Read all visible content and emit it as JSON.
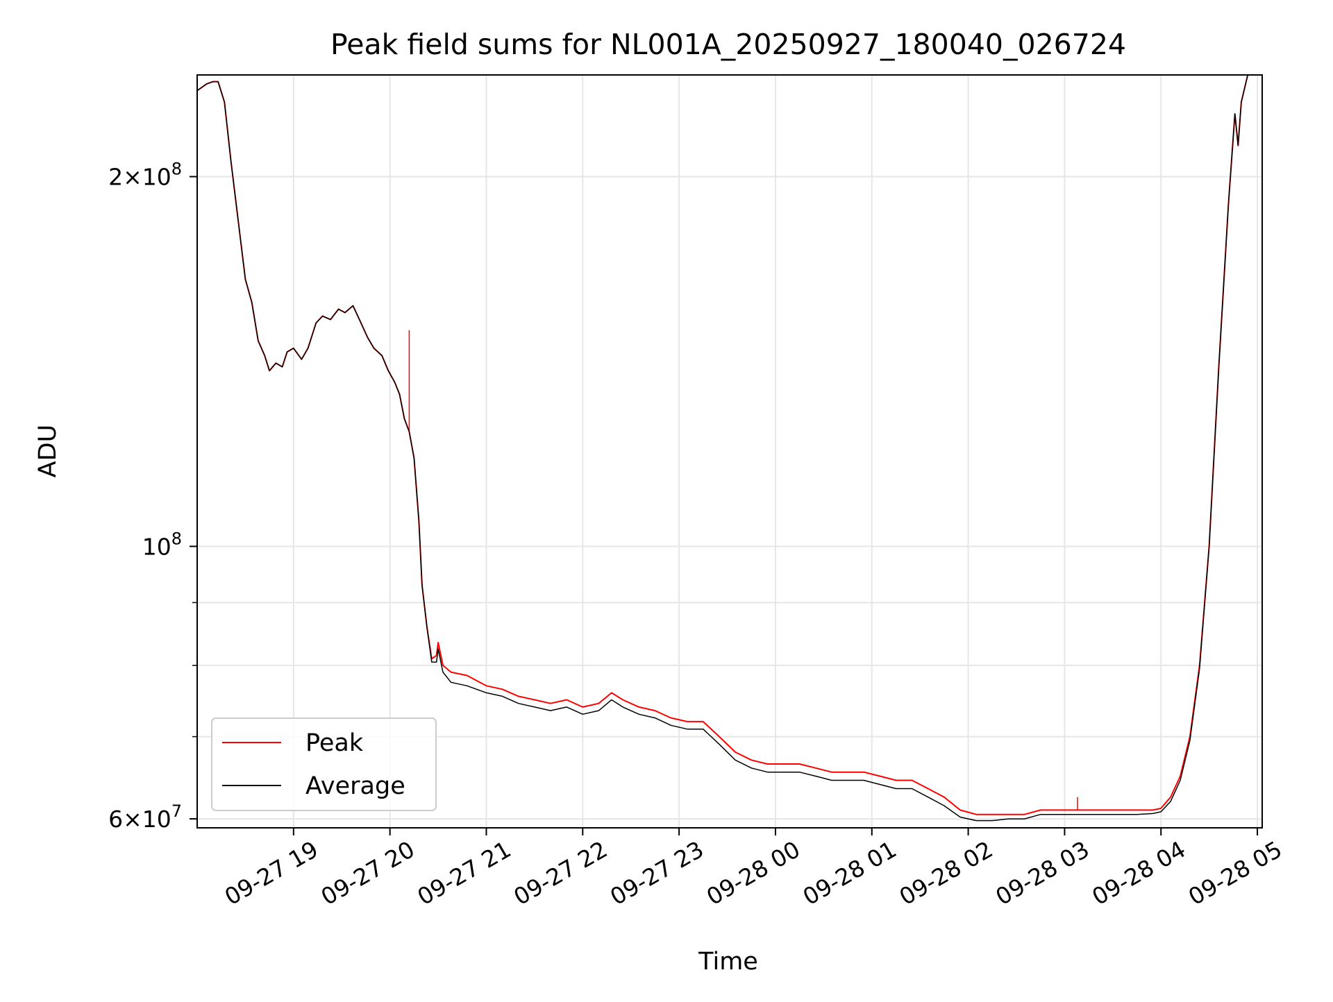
{
  "chart_data": {
    "type": "line",
    "title": "Peak field sums for NL001A_20250927_180040_026724",
    "xlabel": "Time",
    "ylabel": "ADU",
    "yscale": "log",
    "grid": true,
    "legend_position": "lower left",
    "xlim": [
      "2025-09-27 18:00",
      "2025-09-28 05:03"
    ],
    "ylim": [
      59000000,
      242000000
    ],
    "x_ticks": [
      {
        "t": "2025-09-27 19:00",
        "label": "09-27 19"
      },
      {
        "t": "2025-09-27 20:00",
        "label": "09-27 20"
      },
      {
        "t": "2025-09-27 21:00",
        "label": "09-27 21"
      },
      {
        "t": "2025-09-27 22:00",
        "label": "09-27 22"
      },
      {
        "t": "2025-09-27 23:00",
        "label": "09-27 23"
      },
      {
        "t": "2025-09-28 00:00",
        "label": "09-28 00"
      },
      {
        "t": "2025-09-28 01:00",
        "label": "09-28 01"
      },
      {
        "t": "2025-09-28 02:00",
        "label": "09-28 02"
      },
      {
        "t": "2025-09-28 03:00",
        "label": "09-28 03"
      },
      {
        "t": "2025-09-28 04:00",
        "label": "09-28 04"
      },
      {
        "t": "2025-09-28 05:00",
        "label": "09-28 05"
      }
    ],
    "y_major_ticks": [
      {
        "v": 200000000,
        "mant": "2",
        "exp": "8"
      },
      {
        "v": 100000000,
        "mant": "",
        "exp": "8"
      },
      {
        "v": 60000000,
        "mant": "6",
        "exp": "7"
      }
    ],
    "y_minor_grid": [
      70000000,
      80000000,
      90000000
    ],
    "series": [
      {
        "name": "Peak",
        "color": "#ff0000",
        "points": [
          [
            "2025-09-27 18:00",
            235000000
          ],
          [
            "2025-09-27 18:06",
            238000000
          ],
          [
            "2025-09-27 18:10",
            239000000
          ],
          [
            "2025-09-27 18:13",
            239000000
          ],
          [
            "2025-09-27 18:17",
            230000000
          ],
          [
            "2025-09-27 18:21",
            206000000
          ],
          [
            "2025-09-27 18:26",
            182000000
          ],
          [
            "2025-09-27 18:30",
            165000000
          ],
          [
            "2025-09-27 18:34",
            158000000
          ],
          [
            "2025-09-27 18:38",
            147000000
          ],
          [
            "2025-09-27 18:42",
            143000000
          ],
          [
            "2025-09-27 18:45",
            139000000
          ],
          [
            "2025-09-27 18:49",
            141000000
          ],
          [
            "2025-09-27 18:53",
            140000000
          ],
          [
            "2025-09-27 18:56",
            144000000
          ],
          [
            "2025-09-27 19:00",
            145000000
          ],
          [
            "2025-09-27 19:05",
            142000000
          ],
          [
            "2025-09-27 19:09",
            145000000
          ],
          [
            "2025-09-27 19:14",
            152000000
          ],
          [
            "2025-09-27 19:18",
            154000000
          ],
          [
            "2025-09-27 19:23",
            153000000
          ],
          [
            "2025-09-27 19:28",
            156000000
          ],
          [
            "2025-09-27 19:32",
            155000000
          ],
          [
            "2025-09-27 19:37",
            157000000
          ],
          [
            "2025-09-27 19:41",
            153000000
          ],
          [
            "2025-09-27 19:46",
            148000000
          ],
          [
            "2025-09-27 19:50",
            145000000
          ],
          [
            "2025-09-27 19:55",
            143000000
          ],
          [
            "2025-09-27 19:59",
            139000000
          ],
          [
            "2025-09-27 20:03",
            136000000
          ],
          [
            "2025-09-27 20:06",
            133000000
          ],
          [
            "2025-09-27 20:09",
            127000000
          ],
          [
            "2025-09-27 20:12",
            124000000
          ],
          [
            "2025-09-27 20:15",
            118000000
          ],
          [
            "2025-09-27 20:18",
            105000000
          ],
          [
            "2025-09-27 20:20",
            93000000
          ],
          [
            "2025-09-27 20:23",
            86000000
          ],
          [
            "2025-09-27 20:26",
            81000000
          ],
          [
            "2025-09-27 20:29",
            81500000
          ],
          [
            "2025-09-27 20:30",
            83500000
          ],
          [
            "2025-09-27 20:33",
            80000000
          ],
          [
            "2025-09-27 20:38",
            79000000
          ],
          [
            "2025-09-27 20:48",
            78500000
          ],
          [
            "2025-09-27 21:00",
            77000000
          ],
          [
            "2025-09-27 21:10",
            76500000
          ],
          [
            "2025-09-27 21:20",
            75500000
          ],
          [
            "2025-09-27 21:30",
            75000000
          ],
          [
            "2025-09-27 21:40",
            74500000
          ],
          [
            "2025-09-27 21:50",
            75000000
          ],
          [
            "2025-09-27 22:00",
            74000000
          ],
          [
            "2025-09-27 22:10",
            74500000
          ],
          [
            "2025-09-27 22:18",
            76000000
          ],
          [
            "2025-09-27 22:25",
            75000000
          ],
          [
            "2025-09-27 22:35",
            74000000
          ],
          [
            "2025-09-27 22:45",
            73500000
          ],
          [
            "2025-09-27 22:55",
            72500000
          ],
          [
            "2025-09-27 23:05",
            72000000
          ],
          [
            "2025-09-27 23:15",
            72000000
          ],
          [
            "2025-09-27 23:25",
            70000000
          ],
          [
            "2025-09-27 23:35",
            68000000
          ],
          [
            "2025-09-27 23:45",
            67000000
          ],
          [
            "2025-09-27 23:55",
            66500000
          ],
          [
            "2025-09-28 00:05",
            66500000
          ],
          [
            "2025-09-28 00:15",
            66500000
          ],
          [
            "2025-09-28 00:25",
            66000000
          ],
          [
            "2025-09-28 00:35",
            65500000
          ],
          [
            "2025-09-28 00:45",
            65500000
          ],
          [
            "2025-09-28 00:55",
            65500000
          ],
          [
            "2025-09-28 01:05",
            65000000
          ],
          [
            "2025-09-28 01:15",
            64500000
          ],
          [
            "2025-09-28 01:25",
            64500000
          ],
          [
            "2025-09-28 01:35",
            63500000
          ],
          [
            "2025-09-28 01:45",
            62500000
          ],
          [
            "2025-09-28 01:55",
            61000000
          ],
          [
            "2025-09-28 02:05",
            60500000
          ],
          [
            "2025-09-28 02:15",
            60500000
          ],
          [
            "2025-09-28 02:25",
            60500000
          ],
          [
            "2025-09-28 02:35",
            60500000
          ],
          [
            "2025-09-28 02:45",
            61000000
          ],
          [
            "2025-09-28 02:55",
            61000000
          ],
          [
            "2025-09-28 03:05",
            61000000
          ],
          [
            "2025-09-28 03:15",
            61000000
          ],
          [
            "2025-09-28 03:25",
            61000000
          ],
          [
            "2025-09-28 03:35",
            61000000
          ],
          [
            "2025-09-28 03:45",
            61000000
          ],
          [
            "2025-09-28 03:55",
            61000000
          ],
          [
            "2025-09-28 04:00",
            61200000
          ],
          [
            "2025-09-28 04:06",
            62500000
          ],
          [
            "2025-09-28 04:12",
            65000000
          ],
          [
            "2025-09-28 04:18",
            70000000
          ],
          [
            "2025-09-28 04:24",
            80000000
          ],
          [
            "2025-09-28 04:30",
            100000000
          ],
          [
            "2025-09-28 04:36",
            140000000
          ],
          [
            "2025-09-28 04:42",
            190000000
          ],
          [
            "2025-09-28 04:46",
            225000000
          ],
          [
            "2025-09-28 04:48",
            212000000
          ],
          [
            "2025-09-28 04:50",
            230000000
          ],
          [
            "2025-09-28 04:54",
            242000000
          ]
        ],
        "spikes": [
          {
            "t": "2025-09-27 20:12",
            "value": 150000000
          },
          {
            "t": "2025-09-28 03:08",
            "value": 62500000
          }
        ]
      },
      {
        "name": "Average",
        "color": "#000000",
        "points": [
          [
            "2025-09-27 18:00",
            235000000
          ],
          [
            "2025-09-27 18:06",
            238000000
          ],
          [
            "2025-09-27 18:10",
            239000000
          ],
          [
            "2025-09-27 18:13",
            239000000
          ],
          [
            "2025-09-27 18:17",
            230000000
          ],
          [
            "2025-09-27 18:21",
            206000000
          ],
          [
            "2025-09-27 18:26",
            182000000
          ],
          [
            "2025-09-27 18:30",
            165000000
          ],
          [
            "2025-09-27 18:34",
            158000000
          ],
          [
            "2025-09-27 18:38",
            147000000
          ],
          [
            "2025-09-27 18:42",
            143000000
          ],
          [
            "2025-09-27 18:45",
            139000000
          ],
          [
            "2025-09-27 18:49",
            141000000
          ],
          [
            "2025-09-27 18:53",
            140000000
          ],
          [
            "2025-09-27 18:56",
            144000000
          ],
          [
            "2025-09-27 19:00",
            145000000
          ],
          [
            "2025-09-27 19:05",
            142000000
          ],
          [
            "2025-09-27 19:09",
            145000000
          ],
          [
            "2025-09-27 19:14",
            152000000
          ],
          [
            "2025-09-27 19:18",
            154000000
          ],
          [
            "2025-09-27 19:23",
            153000000
          ],
          [
            "2025-09-27 19:28",
            156000000
          ],
          [
            "2025-09-27 19:32",
            155000000
          ],
          [
            "2025-09-27 19:37",
            157000000
          ],
          [
            "2025-09-27 19:41",
            153000000
          ],
          [
            "2025-09-27 19:46",
            148000000
          ],
          [
            "2025-09-27 19:50",
            145000000
          ],
          [
            "2025-09-27 19:55",
            143000000
          ],
          [
            "2025-09-27 19:59",
            139000000
          ],
          [
            "2025-09-27 20:03",
            136000000
          ],
          [
            "2025-09-27 20:06",
            133000000
          ],
          [
            "2025-09-27 20:09",
            127000000
          ],
          [
            "2025-09-27 20:12",
            124000000
          ],
          [
            "2025-09-27 20:15",
            118000000
          ],
          [
            "2025-09-27 20:18",
            105000000
          ],
          [
            "2025-09-27 20:20",
            93000000
          ],
          [
            "2025-09-27 20:23",
            86000000
          ],
          [
            "2025-09-27 20:26",
            80500000
          ],
          [
            "2025-09-27 20:29",
            80500000
          ],
          [
            "2025-09-27 20:30",
            82500000
          ],
          [
            "2025-09-27 20:33",
            79000000
          ],
          [
            "2025-09-27 20:38",
            77500000
          ],
          [
            "2025-09-27 20:48",
            77000000
          ],
          [
            "2025-09-27 21:00",
            76000000
          ],
          [
            "2025-09-27 21:10",
            75500000
          ],
          [
            "2025-09-27 21:20",
            74500000
          ],
          [
            "2025-09-27 21:30",
            74000000
          ],
          [
            "2025-09-27 21:40",
            73500000
          ],
          [
            "2025-09-27 21:50",
            74000000
          ],
          [
            "2025-09-27 22:00",
            73000000
          ],
          [
            "2025-09-27 22:10",
            73500000
          ],
          [
            "2025-09-27 22:18",
            75000000
          ],
          [
            "2025-09-27 22:25",
            74000000
          ],
          [
            "2025-09-27 22:35",
            73000000
          ],
          [
            "2025-09-27 22:45",
            72500000
          ],
          [
            "2025-09-27 22:55",
            71500000
          ],
          [
            "2025-09-27 23:05",
            71000000
          ],
          [
            "2025-09-27 23:15",
            71000000
          ],
          [
            "2025-09-27 23:25",
            69000000
          ],
          [
            "2025-09-27 23:35",
            67000000
          ],
          [
            "2025-09-27 23:45",
            66000000
          ],
          [
            "2025-09-27 23:55",
            65500000
          ],
          [
            "2025-09-28 00:05",
            65500000
          ],
          [
            "2025-09-28 00:15",
            65500000
          ],
          [
            "2025-09-28 00:25",
            65000000
          ],
          [
            "2025-09-28 00:35",
            64500000
          ],
          [
            "2025-09-28 00:45",
            64500000
          ],
          [
            "2025-09-28 00:55",
            64500000
          ],
          [
            "2025-09-28 01:05",
            64000000
          ],
          [
            "2025-09-28 01:15",
            63500000
          ],
          [
            "2025-09-28 01:25",
            63500000
          ],
          [
            "2025-09-28 01:35",
            62500000
          ],
          [
            "2025-09-28 01:45",
            61500000
          ],
          [
            "2025-09-28 01:55",
            60200000
          ],
          [
            "2025-09-28 02:05",
            59800000
          ],
          [
            "2025-09-28 02:15",
            59800000
          ],
          [
            "2025-09-28 02:25",
            60000000
          ],
          [
            "2025-09-28 02:35",
            60000000
          ],
          [
            "2025-09-28 02:45",
            60500000
          ],
          [
            "2025-09-28 02:55",
            60500000
          ],
          [
            "2025-09-28 03:05",
            60500000
          ],
          [
            "2025-09-28 03:15",
            60500000
          ],
          [
            "2025-09-28 03:25",
            60500000
          ],
          [
            "2025-09-28 03:35",
            60500000
          ],
          [
            "2025-09-28 03:45",
            60500000
          ],
          [
            "2025-09-28 03:55",
            60600000
          ],
          [
            "2025-09-28 04:00",
            60800000
          ],
          [
            "2025-09-28 04:06",
            62000000
          ],
          [
            "2025-09-28 04:12",
            64500000
          ],
          [
            "2025-09-28 04:18",
            69500000
          ],
          [
            "2025-09-28 04:24",
            79500000
          ],
          [
            "2025-09-28 04:30",
            100000000
          ],
          [
            "2025-09-28 04:36",
            140000000
          ],
          [
            "2025-09-28 04:42",
            190000000
          ],
          [
            "2025-09-28 04:46",
            225000000
          ],
          [
            "2025-09-28 04:48",
            212000000
          ],
          [
            "2025-09-28 04:50",
            230000000
          ],
          [
            "2025-09-28 04:54",
            242000000
          ]
        ]
      }
    ]
  }
}
